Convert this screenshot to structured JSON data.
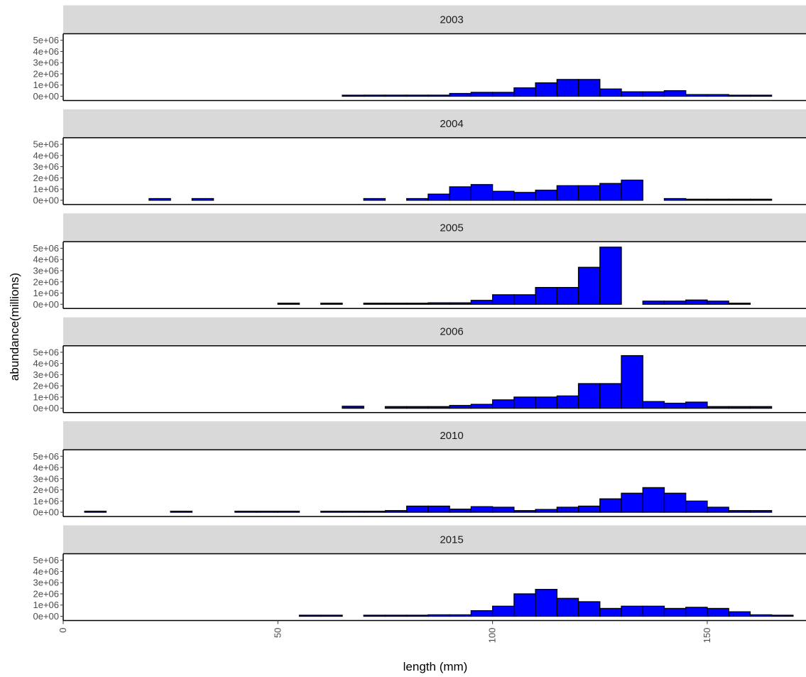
{
  "chart_data": {
    "type": "bar",
    "facet_layout": "stacked-vertical",
    "xlabel": "length (mm)",
    "ylabel": "abundance(millions)",
    "xlim": [
      0,
      173
    ],
    "ylim": [
      0,
      5200000
    ],
    "x_ticks": [
      0,
      50,
      100,
      150
    ],
    "x_tick_labels": [
      "0",
      "50",
      "100",
      "150"
    ],
    "y_ticks": [
      0,
      1000000,
      2000000,
      3000000,
      4000000,
      5000000
    ],
    "y_tick_labels": [
      "0e+00",
      "1e+06",
      "2e+06",
      "3e+06",
      "4e+06",
      "5e+06"
    ],
    "bin_width": 5,
    "bar_color": "#0000ff",
    "bar_outline": "#000000",
    "strip_color": "#d9d9d9",
    "grid": false,
    "panels": [
      {
        "label": "2003",
        "x": [
          67.5,
          72.5,
          77.5,
          82.5,
          87.5,
          92.5,
          97.5,
          102.5,
          107.5,
          112.5,
          117.5,
          122.5,
          127.5,
          132.5,
          137.5,
          142.5,
          147.5,
          152.5,
          157.5,
          162.5
        ],
        "values": [
          30000,
          100000,
          100000,
          100000,
          100000,
          250000,
          350000,
          350000,
          750000,
          1200000,
          1500000,
          1500000,
          650000,
          400000,
          400000,
          500000,
          150000,
          150000,
          30000,
          30000
        ]
      },
      {
        "label": "2004",
        "x": [
          22.5,
          32.5,
          72.5,
          82.5,
          87.5,
          92.5,
          97.5,
          102.5,
          107.5,
          112.5,
          117.5,
          122.5,
          127.5,
          132.5,
          142.5,
          147.5,
          152.5,
          157.5,
          162.5
        ],
        "values": [
          150000,
          150000,
          150000,
          150000,
          550000,
          1200000,
          1400000,
          800000,
          700000,
          900000,
          1300000,
          1300000,
          1500000,
          1800000,
          150000,
          30000,
          30000,
          30000,
          30000
        ]
      },
      {
        "label": "2005",
        "x": [
          52.5,
          62.5,
          72.5,
          77.5,
          82.5,
          87.5,
          92.5,
          97.5,
          102.5,
          107.5,
          112.5,
          117.5,
          122.5,
          127.5,
          137.5,
          142.5,
          147.5,
          152.5,
          157.5
        ],
        "values": [
          30000,
          30000,
          30000,
          30000,
          30000,
          130000,
          130000,
          350000,
          850000,
          850000,
          1500000,
          1500000,
          3300000,
          5100000,
          280000,
          280000,
          380000,
          280000,
          30000
        ]
      },
      {
        "label": "2006",
        "x": [
          67.5,
          77.5,
          82.5,
          87.5,
          92.5,
          97.5,
          102.5,
          107.5,
          112.5,
          117.5,
          122.5,
          127.5,
          132.5,
          137.5,
          142.5,
          147.5,
          152.5,
          157.5,
          162.5
        ],
        "values": [
          180000,
          150000,
          150000,
          150000,
          250000,
          350000,
          750000,
          1000000,
          1000000,
          1100000,
          2200000,
          2200000,
          4700000,
          600000,
          450000,
          550000,
          150000,
          150000,
          150000
        ]
      },
      {
        "label": "2010",
        "x": [
          7.5,
          27.5,
          42.5,
          47.5,
          52.5,
          62.5,
          67.5,
          72.5,
          77.5,
          82.5,
          87.5,
          92.5,
          97.5,
          102.5,
          107.5,
          112.5,
          117.5,
          122.5,
          127.5,
          132.5,
          137.5,
          142.5,
          147.5,
          152.5,
          157.5,
          162.5
        ],
        "values": [
          30000,
          30000,
          30000,
          30000,
          30000,
          30000,
          30000,
          30000,
          150000,
          550000,
          550000,
          280000,
          500000,
          450000,
          150000,
          250000,
          450000,
          550000,
          1200000,
          1700000,
          2200000,
          1700000,
          1000000,
          450000,
          150000,
          150000
        ]
      },
      {
        "label": "2015",
        "x": [
          57.5,
          62.5,
          72.5,
          77.5,
          82.5,
          87.5,
          92.5,
          97.5,
          102.5,
          107.5,
          112.5,
          117.5,
          122.5,
          127.5,
          132.5,
          137.5,
          142.5,
          147.5,
          152.5,
          157.5,
          162.5,
          167.5
        ],
        "values": [
          30000,
          30000,
          30000,
          30000,
          30000,
          130000,
          130000,
          500000,
          900000,
          2000000,
          2400000,
          1600000,
          1300000,
          700000,
          900000,
          900000,
          700000,
          800000,
          700000,
          400000,
          130000,
          30000
        ]
      }
    ]
  }
}
